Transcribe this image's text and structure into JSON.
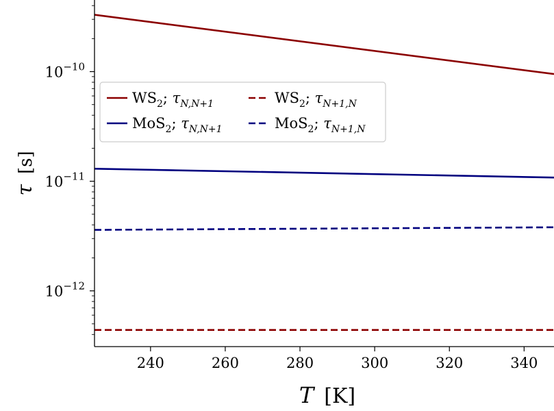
{
  "chart_data": {
    "type": "line",
    "xlabel": "T",
    "xlabel_unit": "[K]",
    "ylabel": "τ",
    "ylabel_unit": "[s]",
    "xlim": [
      225,
      348
    ],
    "ylim": [
      3.1e-13,
      4.5e-10
    ],
    "yscale": "log",
    "grid": false,
    "legend_placement": "upper-left",
    "x_ticks": [
      240,
      260,
      280,
      300,
      320,
      340
    ],
    "y_ticks": [
      {
        "value": 1e-12,
        "base": "10",
        "exp": "−12"
      },
      {
        "value": 1e-11,
        "base": "10",
        "exp": "−11"
      },
      {
        "value": 1e-10,
        "base": "10",
        "exp": "−10"
      }
    ],
    "series": [
      {
        "name": "WS₂; τN,N+1",
        "label_main": "WS",
        "label_sub": "2",
        "tau_sub": "N,N+1",
        "color": "#8b0000",
        "dash": "solid",
        "x": [
          225,
          348
        ],
        "y": [
          3.3e-10,
          9.5e-11
        ]
      },
      {
        "name": "MoS₂; τN,N+1",
        "label_main": "MoS",
        "label_sub": "2",
        "tau_sub": "N,N+1",
        "color": "#00007f",
        "dash": "solid",
        "x": [
          225,
          348
        ],
        "y": [
          1.3e-11,
          1.08e-11
        ]
      },
      {
        "name": "WS₂; τN+1,N",
        "label_main": "WS",
        "label_sub": "2",
        "tau_sub": "N+1,N",
        "color": "#8b0000",
        "dash": "dashed",
        "x": [
          225,
          348
        ],
        "y": [
          4.4e-13,
          4.4e-13
        ]
      },
      {
        "name": "MoS₂; τN+1,N",
        "label_main": "MoS",
        "label_sub": "2",
        "tau_sub": "N+1,N",
        "color": "#00007f",
        "dash": "dashed",
        "x": [
          225,
          348
        ],
        "y": [
          3.6e-12,
          3.8e-12
        ]
      }
    ]
  }
}
